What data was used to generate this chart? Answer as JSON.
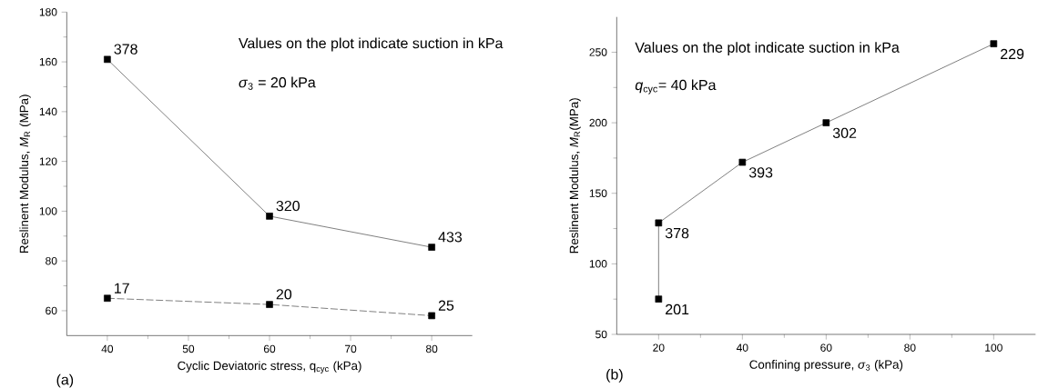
{
  "chart_data": [
    {
      "type": "line",
      "xlabel": "Cyclic Deviatoric stress, q$_{cyc}$ (kPa)",
      "ylabel": "Reslinent Modulus, *M*$_{R}$ (MPa)",
      "xlim": [
        35,
        85
      ],
      "xticks": [
        40,
        50,
        60,
        70,
        80
      ],
      "ylim": [
        50,
        180
      ],
      "yticks": [
        60,
        80,
        100,
        120,
        140,
        160,
        180
      ],
      "x": [
        40,
        60,
        80
      ],
      "marker": "square",
      "series": [
        {
          "color": "#000000",
          "values": [
            161,
            98,
            85.5
          ],
          "line_style": "solid"
        },
        {
          "color": "#000000",
          "values": [
            65,
            62.5,
            58
          ],
          "line_style": "dashed"
        }
      ],
      "annotations": [
        "Values on the plot indicate suction in kPa",
        "*σ*$_{3}$ = 20 kPa",
        "(a)",
        {
          "text": "378",
          "x": 40,
          "y": 161
        },
        {
          "text": "320",
          "x": 60,
          "y": 98
        },
        {
          "text": "433",
          "x": 80,
          "y": 85.5
        },
        {
          "text": "17",
          "x": 40,
          "y": 65
        },
        {
          "text": "20",
          "x": 60,
          "y": 62.5
        },
        {
          "text": "25",
          "x": 80,
          "y": 58
        }
      ]
    },
    {
      "type": "line",
      "xlabel": "Confining pressure, *σ*$_{3}$ (kPa)",
      "ylabel": "Reslinent Modulus, *M*$_{R}$(MPa)",
      "xlim": [
        10,
        110
      ],
      "xticks": [
        20,
        40,
        60,
        80,
        100
      ],
      "ylim": [
        50,
        275
      ],
      "yticks": [
        50,
        100,
        150,
        200,
        250
      ],
      "x": [
        20,
        20,
        40,
        60,
        100
      ],
      "marker": "square",
      "series": [
        {
          "color": "#000000",
          "values": [
            75,
            129,
            172,
            200,
            256
          ],
          "line_style": "solid"
        }
      ],
      "annotations": [
        "Values on the plot indicate suction in kPa",
        "*q*$_{cyc}$= 40 kPa",
        "(b)",
        {
          "text": "201",
          "x": 20,
          "y": 75
        },
        {
          "text": "378",
          "x": 20,
          "y": 129
        },
        {
          "text": "393",
          "x": 40,
          "y": 172
        },
        {
          "text": "302",
          "x": 60,
          "y": 200
        },
        {
          "text": "229",
          "x": 100,
          "y": 256
        }
      ]
    }
  ]
}
